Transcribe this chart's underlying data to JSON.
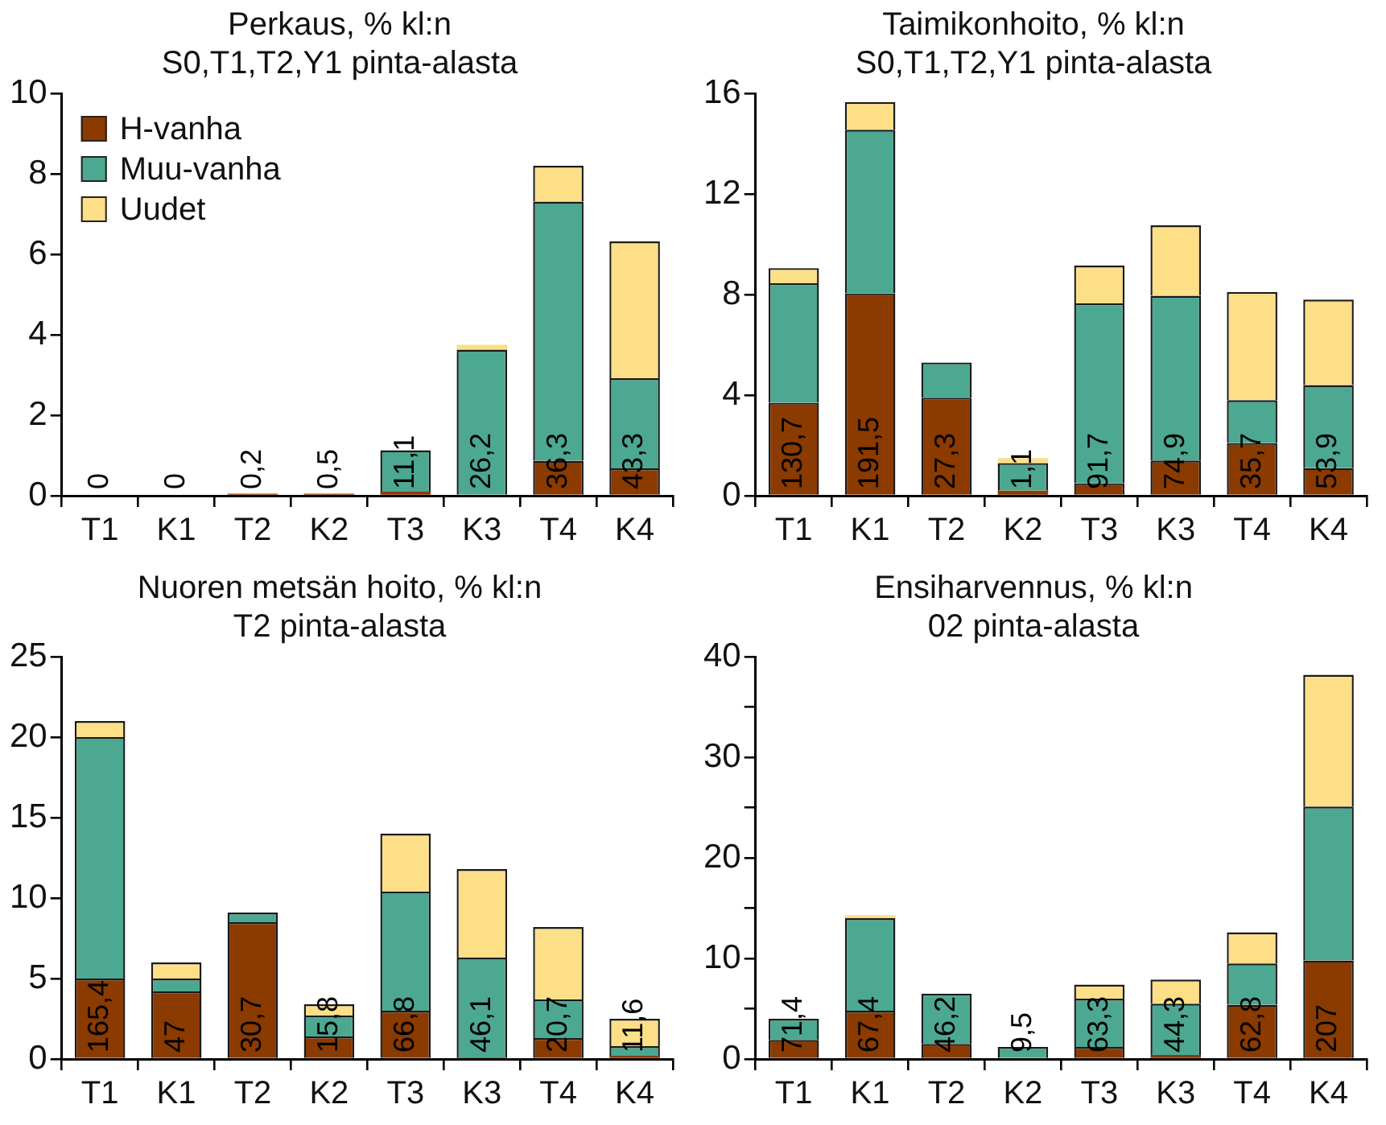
{
  "chart_data": [
    {
      "type": "bar",
      "stacked": true,
      "title": "Perkaus, % kl:n",
      "subtitle": "S0,T1,T2,Y1 pinta-alasta",
      "categories": [
        "T1",
        "K1",
        "T2",
        "K2",
        "T3",
        "K3",
        "T4",
        "K4"
      ],
      "ylim": [
        0,
        10
      ],
      "yticks": [
        0,
        2,
        4,
        6,
        8,
        10
      ],
      "grid": false,
      "legend": "top left",
      "series": [
        {
          "name": "H-vanha",
          "color": "#8b3a00",
          "values": [
            0,
            0,
            0.05,
            0.05,
            0.1,
            0,
            0.87,
            0.68
          ]
        },
        {
          "name": "Muu-vanha",
          "color": "#4da891",
          "values": [
            0,
            0,
            0,
            0,
            1.03,
            3.63,
            6.44,
            2.24
          ]
        },
        {
          "name": "Uudet",
          "color": "#fddf88",
          "values": [
            0,
            0,
            0,
            0,
            0,
            0.12,
            0.89,
            3.4
          ]
        }
      ],
      "annotations": [
        {
          "text": "0",
          "x": "T1",
          "y": 0
        },
        {
          "text": "0",
          "x": "K1",
          "y": 0
        },
        {
          "text": "0,2",
          "x": "T2",
          "y": 0
        },
        {
          "text": "0,5",
          "x": "K2",
          "y": 0
        },
        {
          "text": "11,1",
          "x": "T3",
          "y": 0
        },
        {
          "text": "26,2",
          "x": "K3",
          "y": 0
        },
        {
          "text": "36,3",
          "x": "T4",
          "y": 0
        },
        {
          "text": "43,3",
          "x": "K4",
          "y": 0
        }
      ]
    },
    {
      "type": "bar",
      "stacked": true,
      "title": "Taimikonhoito, % kl:n",
      "subtitle": "S0,T1,T2,Y1 pinta-alasta",
      "categories": [
        "T1",
        "K1",
        "T2",
        "K2",
        "T3",
        "K3",
        "T4",
        "K4"
      ],
      "ylim": [
        0,
        16
      ],
      "yticks": [
        0,
        4,
        8,
        12,
        16
      ],
      "grid": false,
      "legend": false,
      "series": [
        {
          "color": "#8b3a00",
          "values": [
            3.7,
            8.05,
            3.9,
            0.2,
            0.5,
            1.4,
            2.1,
            1.1
          ]
        },
        {
          "color": "#4da891",
          "values": [
            4.75,
            6.5,
            1.4,
            1.1,
            7.15,
            6.55,
            1.7,
            3.3
          ]
        },
        {
          "color": "#fddf88",
          "values": [
            0.6,
            1.1,
            0,
            0.2,
            1.5,
            2.8,
            4.3,
            3.4
          ]
        }
      ],
      "annotations": [
        {
          "text": "130,7",
          "x": "T1",
          "y": 0
        },
        {
          "text": "191,5",
          "x": "K1",
          "y": 0
        },
        {
          "text": "27,3",
          "x": "T2",
          "y": 0
        },
        {
          "text": "1,1",
          "x": "K2",
          "y": 0
        },
        {
          "text": "91,7",
          "x": "T3",
          "y": 0
        },
        {
          "text": "74,9",
          "x": "K3",
          "y": 0
        },
        {
          "text": "35,7",
          "x": "T4",
          "y": 0
        },
        {
          "text": "53,9",
          "x": "K4",
          "y": 0
        }
      ]
    },
    {
      "type": "bar",
      "stacked": true,
      "title": "Nuoren metsän hoito, % kl:n",
      "subtitle": "T2 pinta-alasta",
      "categories": [
        "T1",
        "K1",
        "T2",
        "K2",
        "T3",
        "K3",
        "T4",
        "K4"
      ],
      "ylim": [
        0,
        25
      ],
      "yticks": [
        0,
        5,
        10,
        15,
        20,
        25
      ],
      "grid": false,
      "legend": false,
      "series": [
        {
          "color": "#8b3a00",
          "values": [
            5.0,
            4.2,
            8.5,
            1.4,
            3.0,
            0.1,
            1.3,
            0.2
          ]
        },
        {
          "color": "#4da891",
          "values": [
            15,
            0.8,
            0.6,
            1.3,
            7.4,
            6.2,
            2.4,
            0.6
          ]
        },
        {
          "color": "#fddf88",
          "values": [
            1.0,
            1.0,
            0,
            0.7,
            3.6,
            5.5,
            4.5,
            1.7
          ]
        }
      ],
      "annotations": [
        {
          "text": "165,4",
          "x": "T1",
          "y": 0
        },
        {
          "text": "47",
          "x": "K1",
          "y": 0
        },
        {
          "text": "30,7",
          "x": "T2",
          "y": 0
        },
        {
          "text": "15,8",
          "x": "K2",
          "y": 0
        },
        {
          "text": "66,8",
          "x": "T3",
          "y": 0
        },
        {
          "text": "46,1",
          "x": "K3",
          "y": 0
        },
        {
          "text": "20,7",
          "x": "T4",
          "y": 0
        },
        {
          "text": "11,6",
          "x": "K4",
          "y": 0
        }
      ]
    },
    {
      "type": "bar",
      "stacked": true,
      "title": "Ensiharvennus, % kl:n",
      "subtitle": "02 pinta-alasta",
      "categories": [
        "T1",
        "K1",
        "T2",
        "K2",
        "T3",
        "K3",
        "T4",
        "K4"
      ],
      "ylim": [
        0,
        40
      ],
      "yticks": [
        0,
        {
          "value": 5,
          "label": null
        },
        10,
        {
          "value": 15,
          "label": null
        },
        20,
        {
          "value": 25,
          "label": null
        },
        30,
        {
          "value": 35,
          "label": null
        },
        40
      ],
      "grid": false,
      "legend": false,
      "series": [
        {
          "color": "#8b3a00",
          "values": [
            1.9,
            4.8,
            1.5,
            null,
            1.2,
            0.4,
            5.4,
            9.8
          ]
        },
        {
          "color": "#4da891",
          "values": [
            2.1,
            9.2,
            5.0,
            1.2,
            4.8,
            5.1,
            4.1,
            15.3
          ]
        },
        {
          "color": "#fddf88",
          "values": [
            0,
            0.3,
            0,
            0,
            1.4,
            2.4,
            3.1,
            13.1
          ]
        }
      ],
      "annotations": [
        {
          "text": "71,4",
          "x": "T1",
          "y": 0
        },
        {
          "text": "67,4",
          "x": "K1",
          "y": 0
        },
        {
          "text": "46,2",
          "x": "T2",
          "y": 0
        },
        {
          "text": "9,5",
          "x": "K2",
          "y": 0
        },
        {
          "text": "63,3",
          "x": "T3",
          "y": 0
        },
        {
          "text": "44,3",
          "x": "K3",
          "y": 0
        },
        {
          "text": "62,8",
          "x": "T4",
          "y": 0
        },
        {
          "text": "207",
          "x": "K4",
          "y": 0
        }
      ]
    }
  ]
}
